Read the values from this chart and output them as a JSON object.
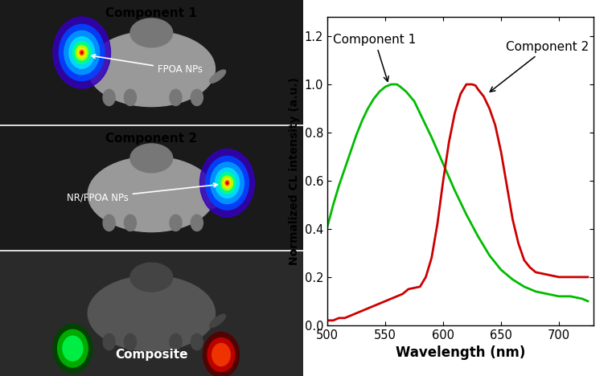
{
  "xlabel": "Wavelength (nm)",
  "ylabel": "Normalized CL intensity (a.u.)",
  "xlim": [
    500,
    730
  ],
  "ylim": [
    0,
    1.28
  ],
  "yticks": [
    0.0,
    0.2,
    0.4,
    0.6,
    0.8,
    1.0,
    1.2
  ],
  "xticks": [
    500,
    550,
    600,
    650,
    700
  ],
  "component1_color": "#00bb00",
  "component2_color": "#cc0000",
  "component1_x": [
    500,
    505,
    510,
    515,
    520,
    525,
    530,
    535,
    540,
    545,
    550,
    555,
    560,
    563,
    568,
    575,
    580,
    590,
    600,
    610,
    620,
    630,
    640,
    650,
    660,
    670,
    680,
    690,
    700,
    710,
    720,
    725
  ],
  "component1_y": [
    0.41,
    0.5,
    0.58,
    0.65,
    0.72,
    0.79,
    0.85,
    0.9,
    0.94,
    0.97,
    0.99,
    1.0,
    1.0,
    0.99,
    0.97,
    0.93,
    0.88,
    0.78,
    0.67,
    0.56,
    0.46,
    0.37,
    0.29,
    0.23,
    0.19,
    0.16,
    0.14,
    0.13,
    0.12,
    0.12,
    0.11,
    0.1
  ],
  "component2_x": [
    500,
    505,
    510,
    515,
    520,
    525,
    530,
    535,
    540,
    545,
    550,
    555,
    560,
    565,
    570,
    575,
    580,
    585,
    590,
    595,
    600,
    605,
    610,
    615,
    620,
    625,
    628,
    630,
    635,
    640,
    645,
    650,
    655,
    660,
    665,
    670,
    675,
    680,
    690,
    700,
    710,
    720,
    725
  ],
  "component2_y": [
    0.02,
    0.02,
    0.03,
    0.03,
    0.04,
    0.05,
    0.06,
    0.07,
    0.08,
    0.09,
    0.1,
    0.11,
    0.12,
    0.13,
    0.15,
    0.155,
    0.16,
    0.2,
    0.28,
    0.42,
    0.6,
    0.76,
    0.88,
    0.96,
    1.0,
    1.0,
    0.995,
    0.98,
    0.95,
    0.9,
    0.83,
    0.72,
    0.58,
    0.44,
    0.34,
    0.27,
    0.24,
    0.22,
    0.21,
    0.2,
    0.2,
    0.2,
    0.2
  ],
  "label1": "Component 1",
  "label2": "Component 2",
  "panel1_title": "Component 1",
  "panel2_title": "Component 2",
  "panel3_title": "Composite",
  "label_fpoa": "FPOA NPs",
  "label_nrfpoa": "NR/FPOA NPs",
  "bg_dark": "#111111",
  "bg_mid": "#1a1a1a",
  "mouse_color": "#888888",
  "mouse_color2": "#777777",
  "white": "#ffffff",
  "black": "#000000"
}
